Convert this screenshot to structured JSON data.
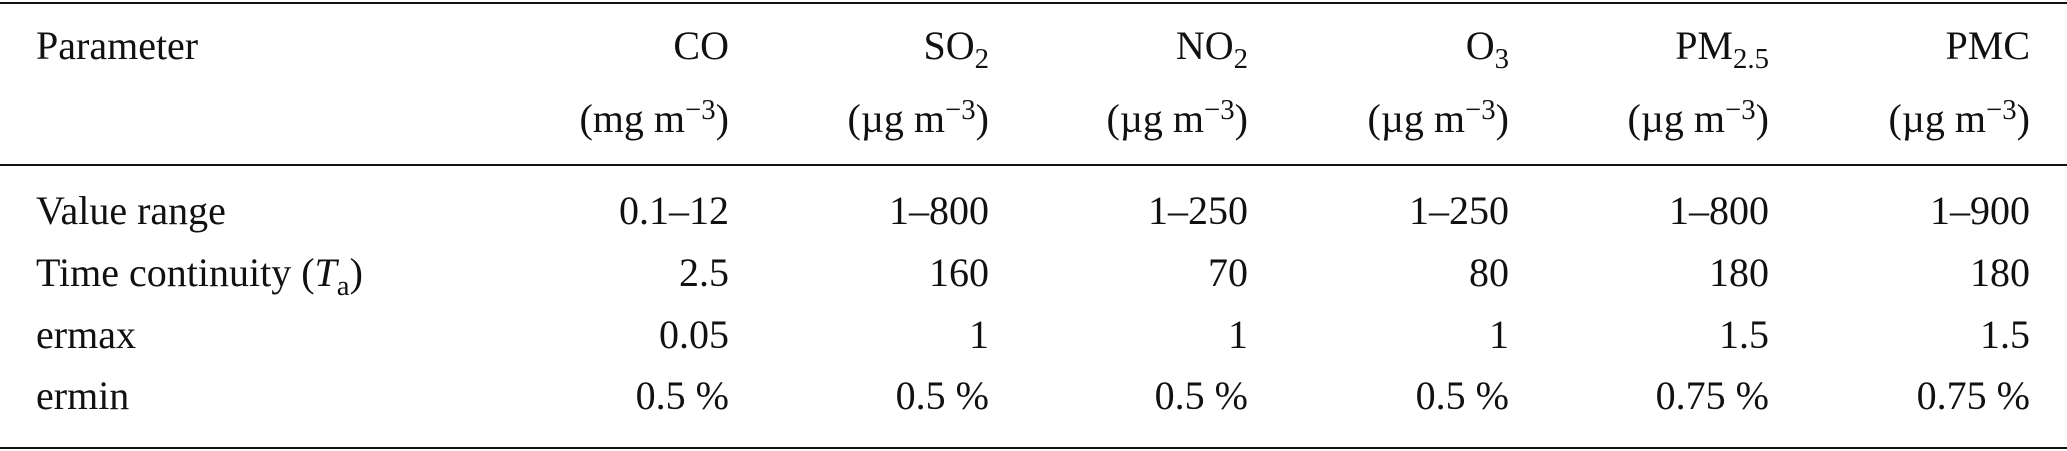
{
  "table": {
    "header": [
      {
        "name": "Parameter"
      },
      {
        "name": "CO",
        "unit": "(mg m",
        "exp": "−3",
        "unit_close": ")"
      },
      {
        "name": "SO",
        "sub": "2",
        "unit": "(µg m",
        "exp": "−3",
        "unit_close": ")"
      },
      {
        "name": "NO",
        "sub": "2",
        "unit": "(µg m",
        "exp": "−3",
        "unit_close": ")"
      },
      {
        "name": "O",
        "sub": "3",
        "unit": "(µg m",
        "exp": "−3",
        "unit_close": ")"
      },
      {
        "name": "PM",
        "sub": "2.5",
        "unit": "(µg m",
        "exp": "−3",
        "unit_close": ")"
      },
      {
        "name": "PMC",
        "unit": "(µg m",
        "exp": "−3",
        "unit_close": ")"
      }
    ],
    "rows": [
      {
        "label": {
          "text": "Value range"
        },
        "cells": [
          "0.1–12",
          "1–800",
          "1–250",
          "1–250",
          "1–800",
          "1–900"
        ]
      },
      {
        "label": {
          "text": "Time continuity (",
          "italic": "T",
          "sub": "a",
          "close": ")"
        },
        "cells": [
          "2.5",
          "160",
          "70",
          "80",
          "180",
          "180"
        ]
      },
      {
        "label": {
          "text": "ermax"
        },
        "cells": [
          "0.05",
          "1",
          "1",
          "1",
          "1.5",
          "1.5"
        ]
      },
      {
        "label": {
          "text": "ermin"
        },
        "cells": [
          "0.5 %",
          "0.5 %",
          "0.5 %",
          "0.5 %",
          "0.75 %",
          "0.75 %"
        ]
      }
    ]
  }
}
